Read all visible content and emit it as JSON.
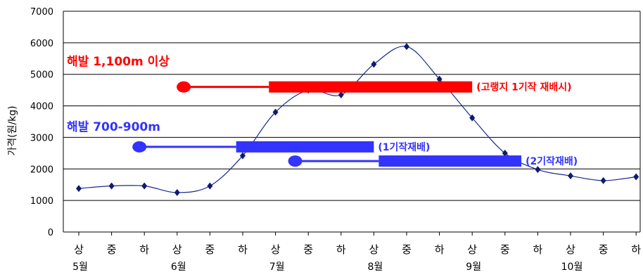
{
  "chart_data": {
    "type": "line",
    "ylabel": "가격(원/kg)",
    "ylim": [
      0,
      7000
    ],
    "yticks": [
      0,
      1000,
      2000,
      3000,
      4000,
      5000,
      6000,
      7000
    ],
    "grid": true,
    "categories": [
      "상",
      "중",
      "하",
      "상",
      "중",
      "하",
      "상",
      "중",
      "하",
      "상",
      "중",
      "하",
      "상",
      "중",
      "하",
      "상",
      "중",
      "하"
    ],
    "months": [
      {
        "label": "5월",
        "at": 0
      },
      {
        "label": "6월",
        "at": 3
      },
      {
        "label": "7월",
        "at": 6
      },
      {
        "label": "8월",
        "at": 9
      },
      {
        "label": "9월",
        "at": 12
      },
      {
        "label": "10월",
        "at": 15
      }
    ],
    "series": [
      {
        "values": [
          1380,
          1460,
          1460,
          1250,
          1460,
          2420,
          3800,
          4500,
          4350,
          5320,
          5880,
          4850,
          3620,
          2500,
          1980,
          1780,
          1630,
          1750
        ]
      }
    ],
    "annotations": {
      "high": {
        "heading": "해발 1,100m 이상",
        "color": "#ff0000",
        "bars": [
          {
            "label": "(고랭지 1기작 재배시)",
            "dot": 3.2,
            "thick_start": 5.8,
            "end": 12.0,
            "value": 4600
          }
        ]
      },
      "mid": {
        "heading": "해발 700-900m",
        "color": "#3333ff",
        "bars": [
          {
            "label": "(1기작재배)",
            "dot": 1.85,
            "thick_start": 4.8,
            "end": 9.0,
            "value": 2700
          },
          {
            "label": "(2기작재배)",
            "dot": 6.6,
            "thick_start": 9.15,
            "end": 13.5,
            "value": 2250
          }
        ]
      }
    }
  }
}
